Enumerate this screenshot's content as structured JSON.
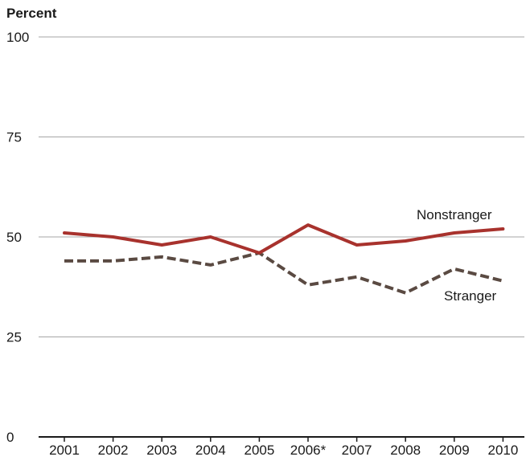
{
  "chart_data": {
    "type": "line",
    "ylabel": "Percent",
    "xlabel": "",
    "title": "",
    "x": [
      "2001",
      "2002",
      "2003",
      "2004",
      "2005",
      "2006*",
      "2007",
      "2008",
      "2009",
      "2010"
    ],
    "ylim": [
      0,
      100
    ],
    "yticks": [
      0,
      25,
      50,
      75,
      100
    ],
    "grid": true,
    "legend": "inline labels at line ends",
    "series": [
      {
        "name": "Nonstranger",
        "values": [
          51,
          50,
          48,
          50,
          46,
          53,
          48,
          49,
          51,
          52
        ],
        "color": "#a8322d",
        "style": "solid"
      },
      {
        "name": "Stranger",
        "values": [
          44,
          44,
          45,
          43,
          46,
          38,
          40,
          36,
          42,
          39
        ],
        "color": "#5a4a42",
        "style": "dashed"
      }
    ]
  }
}
